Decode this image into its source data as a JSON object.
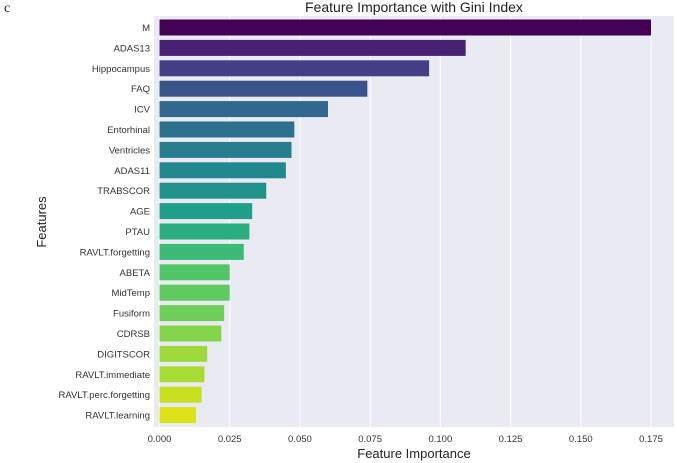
{
  "panel_label": "c",
  "chart_data": {
    "type": "bar",
    "orientation": "horizontal",
    "title": "Feature Importance with Gini Index",
    "xlabel": "Feature Importance",
    "ylabel": "Features",
    "xlim": [
      0,
      0.18
    ],
    "xticks": [
      "0.000",
      "0.025",
      "0.050",
      "0.075",
      "0.100",
      "0.125",
      "0.150",
      "0.175"
    ],
    "grid": true,
    "background": "#eaeaf2",
    "palette": "viridis",
    "categories": [
      "M",
      "ADAS13",
      "Hippocampus",
      "FAQ",
      "ICV",
      "Entorhinal",
      "Ventricles",
      "ADAS11",
      "TRABSCOR",
      "AGE",
      "PTAU",
      "RAVLT.forgetting",
      "ABETA",
      "MidTemp",
      "Fusiform",
      "CDRSB",
      "DIGITSCOR",
      "RAVLT.immediate",
      "RAVLT.perc.forgetting",
      "RAVLT.learning"
    ],
    "values": [
      0.175,
      0.109,
      0.096,
      0.074,
      0.06,
      0.048,
      0.047,
      0.045,
      0.038,
      0.033,
      0.032,
      0.03,
      0.025,
      0.025,
      0.023,
      0.022,
      0.017,
      0.016,
      0.015,
      0.013
    ],
    "colors": [
      "#440154",
      "#482173",
      "#433e85",
      "#3a538b",
      "#31688e",
      "#2c728e",
      "#287d8e",
      "#23888e",
      "#21918c",
      "#1fa088",
      "#28ae80",
      "#3bbb75",
      "#52c569",
      "#60ca60",
      "#6ece58",
      "#85d54a",
      "#9dd93b",
      "#a8db34",
      "#c8e020",
      "#dde318"
    ]
  }
}
